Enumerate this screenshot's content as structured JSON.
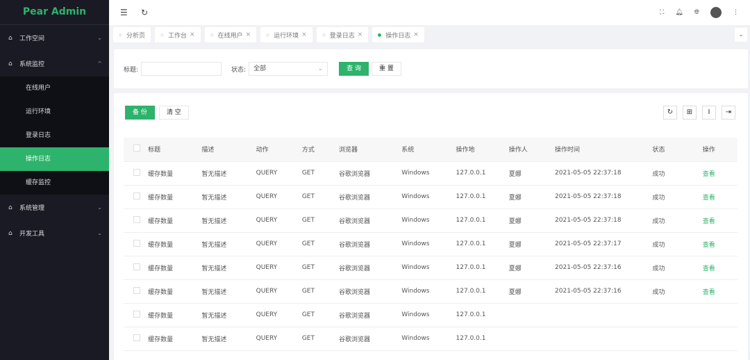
{
  "app": {
    "title": "Pear Admin"
  },
  "sidebar": {
    "items": [
      {
        "label": "工作空间",
        "expanded": false
      },
      {
        "label": "系统监控",
        "expanded": true,
        "children": [
          "在线用户",
          "运行环境",
          "登录日志",
          "操作日志",
          "缓存监控"
        ],
        "active": "操作日志"
      },
      {
        "label": "系统管理",
        "expanded": false
      },
      {
        "label": "开发工具",
        "expanded": false
      }
    ]
  },
  "tabs": [
    {
      "label": "分析页",
      "closable": false
    },
    {
      "label": "工作台",
      "closable": true
    },
    {
      "label": "在线用户",
      "closable": true
    },
    {
      "label": "运行环境",
      "closable": true
    },
    {
      "label": "登录日志",
      "closable": true
    },
    {
      "label": "操作日志",
      "closable": true,
      "active": true
    }
  ],
  "search": {
    "title_label": "标题:",
    "title_value": "",
    "status_label": "状态:",
    "status_value": "全部",
    "query": "查 询",
    "reset": "重 置"
  },
  "toolbar": {
    "backup": "备 份",
    "clear": "清 空"
  },
  "table": {
    "columns": [
      "标题",
      "描述",
      "动作",
      "方式",
      "浏览器",
      "系统",
      "操作地",
      "操作人",
      "操作时间",
      "状态",
      "操作"
    ],
    "rows": [
      [
        "缓存数量",
        "暂无描述",
        "QUERY",
        "GET",
        "谷歌浏览器",
        "Windows",
        "127.0.0.1",
        "夏娜",
        "2021-05-05 22:37:18",
        "成功",
        "查看"
      ],
      [
        "缓存数量",
        "暂无描述",
        "QUERY",
        "GET",
        "谷歌浏览器",
        "Windows",
        "127.0.0.1",
        "夏娜",
        "2021-05-05 22:37:18",
        "成功",
        "查看"
      ],
      [
        "缓存数量",
        "暂无描述",
        "QUERY",
        "GET",
        "谷歌浏览器",
        "Windows",
        "127.0.0.1",
        "夏娜",
        "2021-05-05 22:37:18",
        "成功",
        "查看"
      ],
      [
        "缓存数量",
        "暂无描述",
        "QUERY",
        "GET",
        "谷歌浏览器",
        "Windows",
        "127.0.0.1",
        "夏娜",
        "2021-05-05 22:37:17",
        "成功",
        "查看"
      ],
      [
        "缓存数量",
        "暂无描述",
        "QUERY",
        "GET",
        "谷歌浏览器",
        "Windows",
        "127.0.0.1",
        "夏娜",
        "2021-05-05 22:37:16",
        "成功",
        "查看"
      ],
      [
        "缓存数量",
        "暂无描述",
        "QUERY",
        "GET",
        "谷歌浏览器",
        "Windows",
        "127.0.0.1",
        "夏娜",
        "2021-05-05 22:37:16",
        "成功",
        "查看"
      ],
      [
        "缓存数量",
        "暂无描述",
        "QUERY",
        "GET",
        "谷歌浏览器",
        "Windows",
        "127.0.0.1",
        "",
        "",
        "",
        ""
      ],
      [
        "缓存数量",
        "暂无描述",
        "QUERY",
        "GET",
        "谷歌浏览器",
        "Windows",
        "127.0.0.1",
        "",
        "",
        "",
        ""
      ]
    ]
  },
  "colors": {
    "accent": "#2db36b",
    "sidebar": "#191a23"
  }
}
